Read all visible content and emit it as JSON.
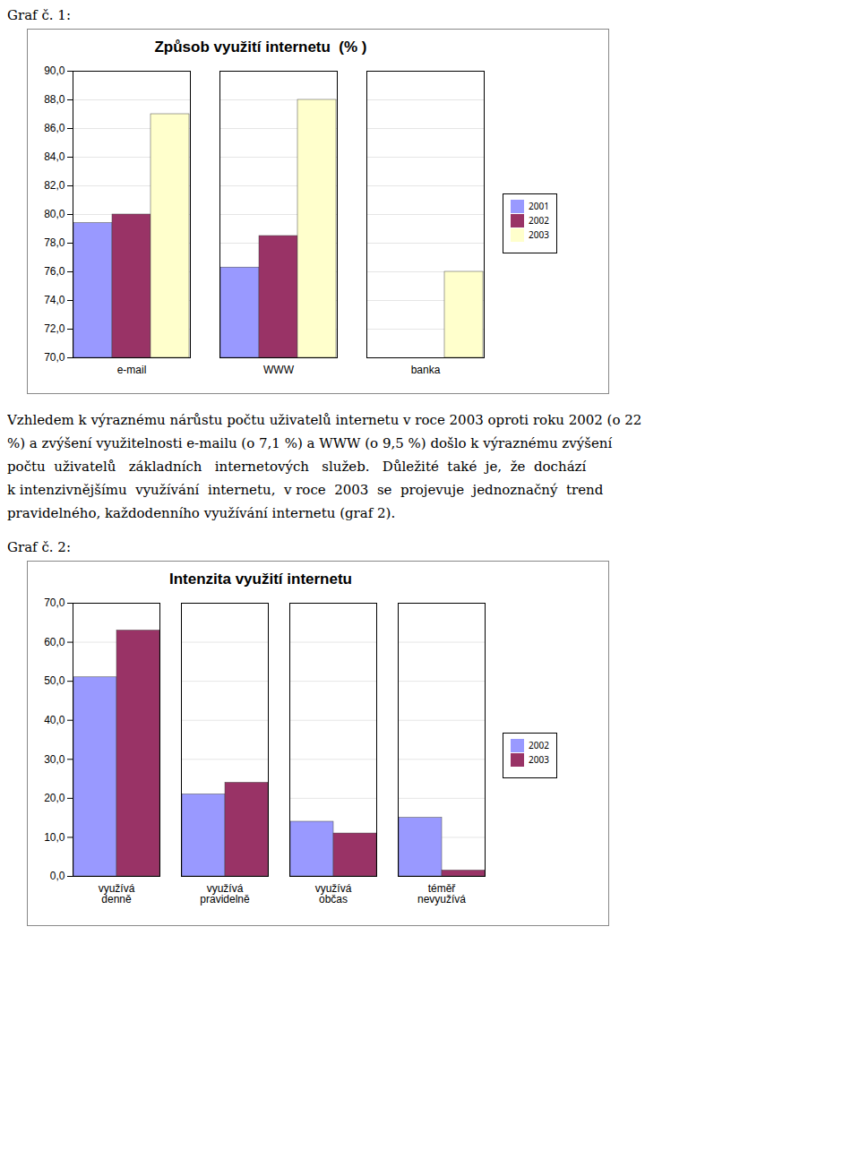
{
  "label1": "Graf č. 1:",
  "label2": "Graf č. 2:",
  "text_lines": [
    "Vzhledem k výraznému nárůstu počtu uživatelů internetu v roce 2003 oproti roku 2002 (o 22",
    "%) a zvýšení využitelnosti e-mailu (o 7,1 %) a WWW (o 9,5 %) došlo k výraznému zvýšení",
    "počtu  uživatelů   základních   internetových   služeb.   Důležité  také  je,  že  dochází",
    "k intenzivnějšímu  využívání  internetu,  v roce  2003  se  projevuje  jednoznačný  trend",
    "pravidelného, každodenního využívání internetu (graf 2)."
  ],
  "chart_data": [
    {
      "type": "bar",
      "title": "Způsob využití internetu  (% )",
      "categories": [
        "e-mail",
        "WWW",
        "banka"
      ],
      "series": [
        {
          "name": "2001",
          "color": "#9999FF",
          "values": [
            79.4,
            76.3,
            null
          ]
        },
        {
          "name": "2002",
          "color": "#993366",
          "values": [
            80.0,
            78.5,
            null
          ]
        },
        {
          "name": "2003",
          "color": "#FFFFCC",
          "values": [
            87.0,
            88.0,
            76.0
          ]
        }
      ],
      "ylim": [
        70.0,
        90.0
      ],
      "yticks": [
        {
          "value": 70,
          "label": "70,0"
        },
        {
          "value": 72,
          "label": "72,0"
        },
        {
          "value": 74,
          "label": "74,0"
        },
        {
          "value": 76,
          "label": "76,0"
        },
        {
          "value": 78,
          "label": "78,0"
        },
        {
          "value": 80,
          "label": "80,0"
        },
        {
          "value": 82,
          "label": "82,0"
        },
        {
          "value": 84,
          "label": "84,0"
        },
        {
          "value": 86,
          "label": "86,0"
        },
        {
          "value": 88,
          "label": "88,0"
        },
        {
          "value": 90,
          "label": "90,0"
        }
      ],
      "grid": true,
      "legend": "right"
    },
    {
      "type": "bar",
      "title": "Intenzita využití internetu",
      "categories": [
        "využívá\ndenně",
        "využívá\npravidelně",
        "využívá\nobčas",
        "téměř\nnevyužívá"
      ],
      "series": [
        {
          "name": "2002",
          "color": "#9999FF",
          "values": [
            51.0,
            21.0,
            14.0,
            15.0
          ]
        },
        {
          "name": "2003",
          "color": "#993366",
          "values": [
            63.0,
            24.0,
            11.0,
            1.5
          ]
        }
      ],
      "ylim": [
        0.0,
        70.0
      ],
      "yticks": [
        {
          "value": 0,
          "label": "0,0"
        },
        {
          "value": 10,
          "label": "10,0"
        },
        {
          "value": 20,
          "label": "20,0"
        },
        {
          "value": 30,
          "label": "30,0"
        },
        {
          "value": 40,
          "label": "40,0"
        },
        {
          "value": 50,
          "label": "50,0"
        },
        {
          "value": 60,
          "label": "60,0"
        },
        {
          "value": 70,
          "label": "70,0"
        }
      ],
      "grid": true,
      "legend": "right"
    }
  ]
}
